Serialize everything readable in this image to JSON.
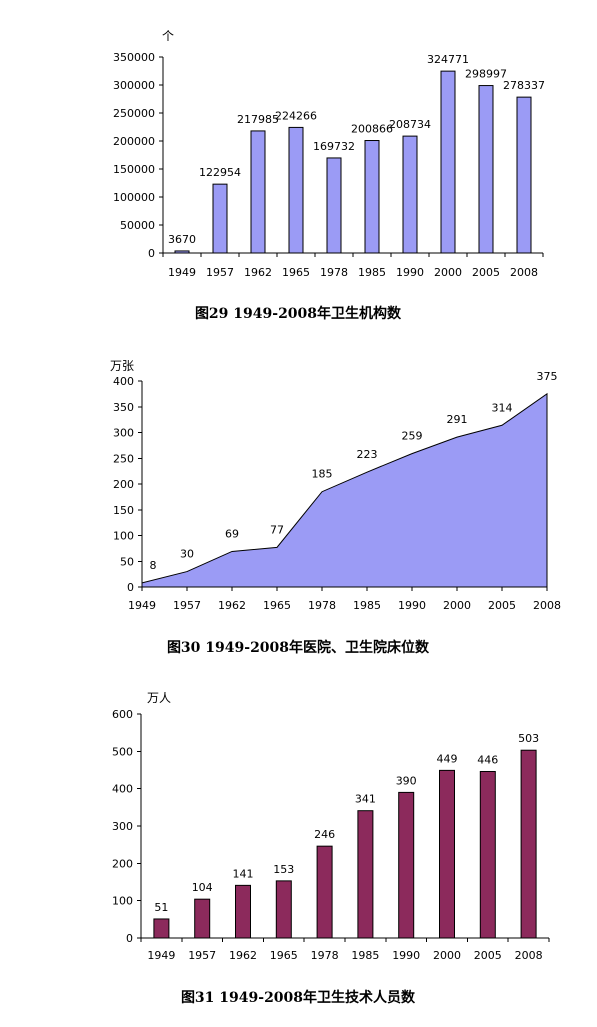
{
  "chart_data": [
    {
      "type": "bar",
      "title": "图29  1949-2008年卫生机构数",
      "unit": "个",
      "categories": [
        "1949",
        "1957",
        "1962",
        "1965",
        "1978",
        "1985",
        "1990",
        "2000",
        "2005",
        "2008"
      ],
      "values": [
        3670,
        122954,
        217985,
        224266,
        169732,
        200866,
        208734,
        324771,
        298997,
        278337
      ],
      "ylim": [
        0,
        350000
      ],
      "yticks": [
        "0",
        "50000",
        "100000",
        "150000",
        "200000",
        "250000",
        "300000",
        "350000"
      ],
      "color": "#9b9bf5",
      "grid": false
    },
    {
      "type": "area",
      "title": "图30  1949-2008年医院、卫生院床位数",
      "unit": "万张",
      "categories": [
        "1949",
        "1957",
        "1962",
        "1965",
        "1978",
        "1985",
        "1990",
        "2000",
        "2005",
        "2008"
      ],
      "values": [
        8,
        30,
        69,
        77,
        185,
        223,
        259,
        291,
        314,
        375
      ],
      "ylim": [
        0,
        400
      ],
      "yticks": [
        "0",
        "50",
        "100",
        "150",
        "200",
        "250",
        "300",
        "350",
        "400"
      ],
      "color": "#9b9bf5",
      "grid": false
    },
    {
      "type": "bar",
      "title": "图31  1949-2008年卫生技术人员数",
      "unit": "万人",
      "categories": [
        "1949",
        "1957",
        "1962",
        "1965",
        "1978",
        "1985",
        "1990",
        "2000",
        "2005",
        "2008"
      ],
      "values": [
        51,
        104,
        141,
        153,
        246,
        341,
        390,
        449,
        446,
        503
      ],
      "ylim": [
        0,
        600
      ],
      "yticks": [
        "0",
        "100",
        "200",
        "300",
        "400",
        "500",
        "600"
      ],
      "color": "#8c2a5c",
      "grid": false
    }
  ]
}
